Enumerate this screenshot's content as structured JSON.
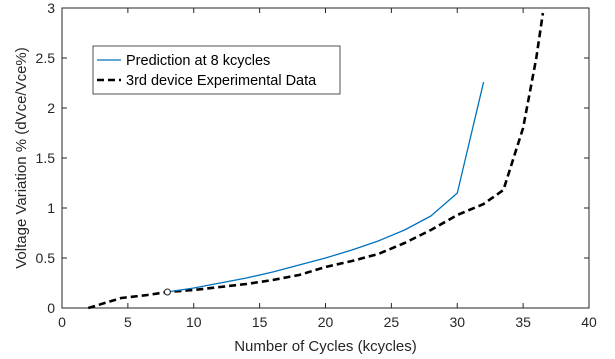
{
  "chart_data": {
    "type": "line",
    "title": "",
    "xlabel": "Number of Cycles (kcycles)",
    "ylabel": "Voltage Variation % (dVce/Vce%)",
    "xlim": [
      0,
      40
    ],
    "ylim": [
      0,
      3
    ],
    "xticks": [
      "0",
      "5",
      "10",
      "15",
      "20",
      "25",
      "30",
      "35",
      "40"
    ],
    "yticks": [
      "0",
      "0.5",
      "1",
      "1.5",
      "2",
      "2.5",
      "3"
    ],
    "grid": false,
    "legend_position": "top-left",
    "series": [
      {
        "name": "Prediction at 8 kcycles",
        "style": "solid",
        "color": "#0072BD",
        "x": [
          8,
          10,
          12,
          14,
          16,
          18,
          20,
          22,
          24,
          26,
          28,
          30,
          32
        ],
        "y": [
          0.16,
          0.2,
          0.25,
          0.3,
          0.36,
          0.43,
          0.5,
          0.58,
          0.67,
          0.78,
          0.92,
          1.15,
          2.26
        ]
      },
      {
        "name": "3rd device Experimental Data",
        "style": "dashed",
        "color": "#000000",
        "x": [
          2,
          4.5,
          6.5,
          8,
          10,
          12,
          14,
          16,
          18,
          20,
          22,
          24,
          26,
          28,
          30,
          32,
          33.5,
          35,
          36,
          36.5
        ],
        "y": [
          0,
          0.1,
          0.13,
          0.16,
          0.18,
          0.21,
          0.24,
          0.28,
          0.33,
          0.41,
          0.47,
          0.54,
          0.65,
          0.78,
          0.93,
          1.04,
          1.18,
          1.8,
          2.5,
          2.95
        ]
      }
    ],
    "marker": {
      "x": 8,
      "y": 0.16,
      "shape": "circle"
    }
  }
}
